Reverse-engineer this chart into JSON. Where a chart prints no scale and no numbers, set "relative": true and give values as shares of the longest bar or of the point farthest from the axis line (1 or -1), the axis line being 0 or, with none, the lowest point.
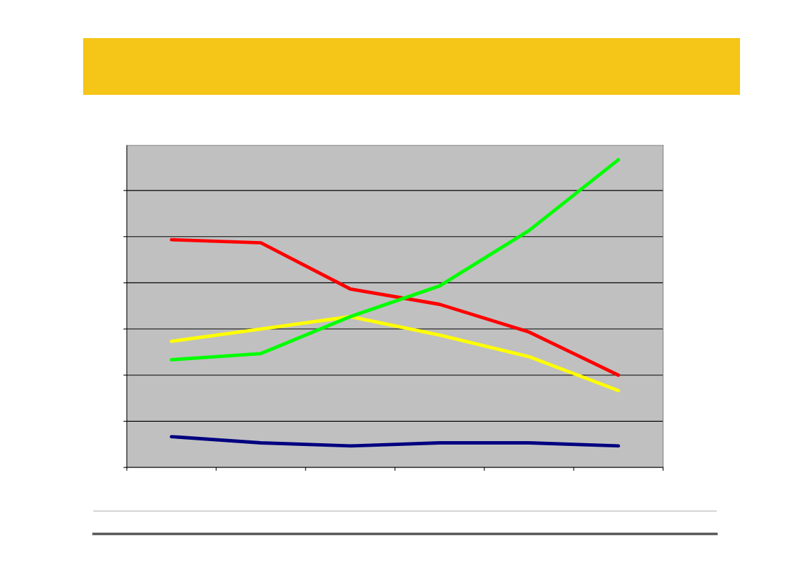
{
  "chart_data": {
    "type": "line",
    "relative": true,
    "categories": [
      null,
      null,
      null,
      null,
      null,
      null
    ],
    "grid": "y",
    "line_style": "solid",
    "marker": "none",
    "tick_labels": false,
    "series": [
      {
        "color": "#ff0000",
        "values": [
          0.74,
          0.73,
          0.58,
          0.53,
          0.44,
          0.3
        ]
      },
      {
        "color": "#ffff00",
        "values": [
          0.41,
          0.45,
          0.49,
          0.43,
          0.36,
          0.25
        ]
      },
      {
        "color": "#000080",
        "values": [
          0.1,
          0.08,
          0.07,
          0.08,
          0.08,
          0.07
        ]
      },
      {
        "color": "#00ff00",
        "values": [
          0.35,
          0.37,
          0.49,
          0.59,
          0.77,
          1
        ]
      }
    ]
  }
}
